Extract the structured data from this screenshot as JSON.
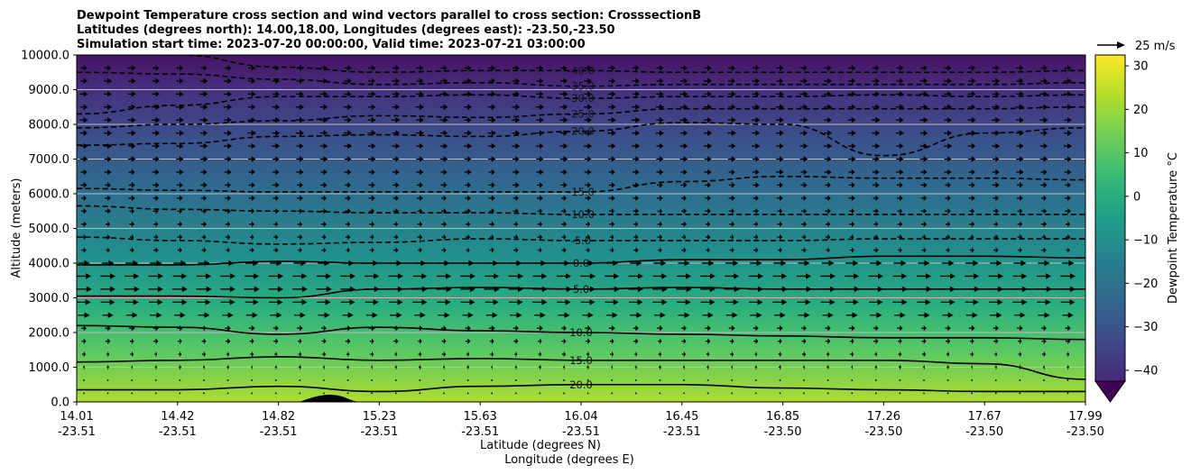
{
  "chart_data": {
    "type": "contour",
    "title_lines": [
      "Dewpoint Temperature cross section and wind vectors parallel to cross section: CrosssectionB",
      "Latitudes (degrees north): 14.00,18.00, Longitudes (degrees east): -23.50,-23.50",
      "Simulation start time: 2023-07-20 00:00:00, Valid time: 2023-07-21 03:00:00"
    ],
    "ylabel": "Altitude (meters)",
    "xlabel_lat": "Latitude (degrees N)",
    "xlabel_lon": "Longitude (degrees E)",
    "ylim": [
      0,
      10000
    ],
    "yticks": [
      "0.0",
      "1000.0",
      "2000.0",
      "3000.0",
      "4000.0",
      "5000.0",
      "6000.0",
      "7000.0",
      "8000.0",
      "9000.0",
      "10000.0"
    ],
    "xticks": [
      {
        "lat": "14.01",
        "lon": "-23.51"
      },
      {
        "lat": "14.42",
        "lon": "-23.51"
      },
      {
        "lat": "14.82",
        "lon": "-23.51"
      },
      {
        "lat": "15.23",
        "lon": "-23.51"
      },
      {
        "lat": "15.63",
        "lon": "-23.51"
      },
      {
        "lat": "16.04",
        "lon": "-23.51"
      },
      {
        "lat": "16.45",
        "lon": "-23.51"
      },
      {
        "lat": "16.85",
        "lon": "-23.50"
      },
      {
        "lat": "17.26",
        "lon": "-23.50"
      },
      {
        "lat": "17.67",
        "lon": "-23.50"
      },
      {
        "lat": "17.99",
        "lon": "-23.50"
      }
    ],
    "grid": "horizontal",
    "colorbar": {
      "label": "Dewpoint Temperature °C",
      "ticks": [
        "30",
        "20",
        "10",
        "0",
        "−10",
        "−20",
        "−30",
        "−40"
      ],
      "range": [
        -42.5,
        32.5
      ],
      "colormap": "viridis",
      "extend": "min"
    },
    "quiver_key": "25 m/s",
    "contour_lines": [
      {
        "level": -40,
        "label": "-40.0",
        "style": "dashed",
        "alt_m": [
          10100,
          10000,
          9650,
          9500,
          9550,
          9550,
          9500,
          9500,
          9500,
          9500,
          9550
        ]
      },
      {
        "level": -35,
        "label": "-35.0",
        "style": "dashed",
        "alt_m": [
          9500,
          9450,
          9300,
          9150,
          9200,
          9100,
          9150,
          9150,
          9150,
          9150,
          9200
        ]
      },
      {
        "level": -30,
        "label": "-30.0",
        "style": "dashed",
        "alt_m": [
          8300,
          8550,
          8800,
          8800,
          8850,
          8750,
          8800,
          8800,
          8850,
          8800,
          8850
        ]
      },
      {
        "level": -25,
        "label": "-25.0",
        "style": "dashed",
        "alt_m": [
          7900,
          8000,
          8100,
          8250,
          8200,
          8300,
          8450,
          8450,
          8450,
          8450,
          8500
        ]
      },
      {
        "level": -20,
        "label": "-20.0",
        "style": "dashed",
        "alt_m": [
          7400,
          7450,
          7650,
          7700,
          7650,
          7800,
          8050,
          8000,
          7100,
          7750,
          7900
        ]
      },
      {
        "level": -15,
        "label": "-15.0",
        "style": "dashed",
        "alt_m": [
          6150,
          6100,
          6050,
          6050,
          6050,
          6050,
          6350,
          6500,
          6450,
          6450,
          6400
        ]
      },
      {
        "level": -10,
        "label": "-10.0",
        "style": "dashed",
        "alt_m": [
          5650,
          5550,
          5500,
          5450,
          5450,
          5400,
          5400,
          5400,
          5400,
          5400,
          5400
        ]
      },
      {
        "level": -5,
        "label": "-5.0",
        "style": "dashed",
        "alt_m": [
          4750,
          4650,
          4550,
          4600,
          4700,
          4650,
          4650,
          4650,
          4700,
          4700,
          4700
        ]
      },
      {
        "level": 0,
        "label": "0.0",
        "style": "solid",
        "alt_m": [
          3950,
          3950,
          4050,
          4000,
          4000,
          4000,
          4100,
          4100,
          4200,
          4200,
          4150
        ]
      },
      {
        "level": 5,
        "label": "5.0",
        "style": "solid",
        "alt_m": [
          3050,
          3050,
          3000,
          3250,
          3300,
          3250,
          3300,
          3250,
          3250,
          3250,
          3250
        ]
      },
      {
        "level": 10,
        "label": "10.0",
        "style": "solid",
        "alt_m": [
          2200,
          2150,
          1950,
          2150,
          2050,
          2000,
          1950,
          1900,
          1850,
          1850,
          1800
        ]
      },
      {
        "level": 15,
        "label": "15.0",
        "style": "solid",
        "alt_m": [
          1150,
          1200,
          1300,
          1200,
          1250,
          1200,
          1200,
          1200,
          1200,
          1100,
          650
        ]
      },
      {
        "level": 20,
        "label": "20.0",
        "style": "solid",
        "alt_m": [
          350,
          350,
          450,
          300,
          450,
          500,
          500,
          400,
          350,
          300,
          300
        ]
      }
    ],
    "terrain": {
      "peak_lat": "15.04",
      "peak_alt_m": 200
    }
  }
}
